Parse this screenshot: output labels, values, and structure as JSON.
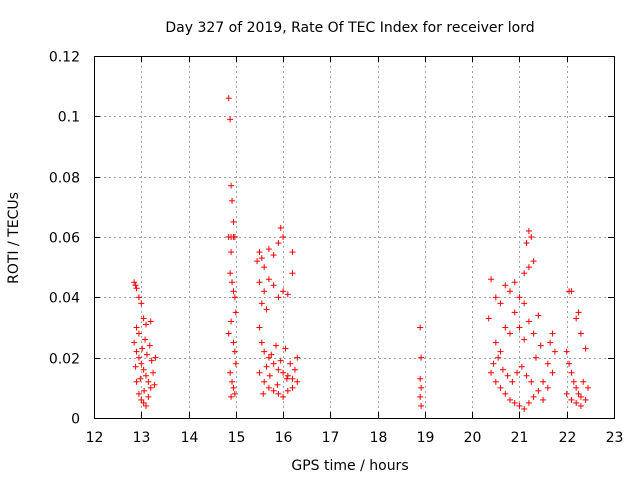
{
  "chart_data": {
    "type": "scatter",
    "title": "Day 327 of 2019, Rate Of TEC Index for receiver lord",
    "xlabel": "GPS time / hours",
    "ylabel": "ROTI / TECUs",
    "xlim": [
      12,
      23
    ],
    "ylim": [
      0,
      0.12
    ],
    "x_ticks": [
      12,
      13,
      14,
      15,
      16,
      17,
      18,
      19,
      20,
      21,
      22,
      23
    ],
    "x_tick_labels": [
      "12",
      "13",
      "14",
      "15",
      "16",
      "17",
      "18",
      "19",
      "20",
      "21",
      "22",
      "23"
    ],
    "y_ticks": [
      0,
      0.02,
      0.04,
      0.06,
      0.08,
      0.1,
      0.12
    ],
    "y_tick_labels": [
      "0",
      "0.02",
      "0.04",
      "0.06",
      "0.08",
      "0.1",
      "0.12"
    ],
    "grid": true,
    "marker": "+",
    "color": "#ff0000",
    "series": [
      {
        "name": "ROTI",
        "points": [
          [
            12.85,
            0.045
          ],
          [
            12.88,
            0.044
          ],
          [
            12.9,
            0.043
          ],
          [
            12.95,
            0.04
          ],
          [
            13.0,
            0.038
          ],
          [
            12.9,
            0.03
          ],
          [
            12.95,
            0.028
          ],
          [
            13.05,
            0.033
          ],
          [
            13.1,
            0.031
          ],
          [
            13.2,
            0.032
          ],
          [
            12.85,
            0.025
          ],
          [
            12.9,
            0.022
          ],
          [
            12.95,
            0.02
          ],
          [
            13.0,
            0.018
          ],
          [
            13.05,
            0.016
          ],
          [
            13.1,
            0.014
          ],
          [
            13.15,
            0.012
          ],
          [
            13.2,
            0.01
          ],
          [
            13.25,
            0.015
          ],
          [
            13.3,
            0.02
          ],
          [
            12.9,
            0.012
          ],
          [
            12.95,
            0.008
          ],
          [
            13.0,
            0.006
          ],
          [
            13.05,
            0.005
          ],
          [
            13.1,
            0.004
          ],
          [
            12.88,
            0.017
          ],
          [
            13.02,
            0.023
          ],
          [
            13.08,
            0.026
          ],
          [
            13.18,
            0.024
          ],
          [
            13.22,
            0.019
          ],
          [
            13.12,
            0.021
          ],
          [
            13.28,
            0.011
          ],
          [
            12.98,
            0.013
          ],
          [
            13.06,
            0.009
          ],
          [
            13.15,
            0.007
          ],
          [
            14.85,
            0.106
          ],
          [
            14.88,
            0.099
          ],
          [
            14.9,
            0.077
          ],
          [
            14.92,
            0.072
          ],
          [
            14.95,
            0.065
          ],
          [
            14.85,
            0.06
          ],
          [
            14.9,
            0.06
          ],
          [
            14.95,
            0.06
          ],
          [
            14.98,
            0.06
          ],
          [
            14.9,
            0.055
          ],
          [
            14.88,
            0.048
          ],
          [
            14.92,
            0.045
          ],
          [
            14.95,
            0.042
          ],
          [
            14.98,
            0.04
          ],
          [
            15.0,
            0.035
          ],
          [
            14.9,
            0.032
          ],
          [
            14.85,
            0.028
          ],
          [
            14.95,
            0.025
          ],
          [
            14.98,
            0.022
          ],
          [
            15.0,
            0.018
          ],
          [
            14.88,
            0.015
          ],
          [
            14.92,
            0.012
          ],
          [
            14.95,
            0.01
          ],
          [
            14.98,
            0.008
          ],
          [
            14.9,
            0.007
          ],
          [
            15.45,
            0.052
          ],
          [
            15.5,
            0.055
          ],
          [
            15.55,
            0.053
          ],
          [
            15.6,
            0.05
          ],
          [
            15.7,
            0.056
          ],
          [
            15.8,
            0.054
          ],
          [
            15.9,
            0.058
          ],
          [
            15.95,
            0.063
          ],
          [
            16.0,
            0.06
          ],
          [
            16.2,
            0.055
          ],
          [
            15.5,
            0.045
          ],
          [
            15.6,
            0.042
          ],
          [
            15.7,
            0.046
          ],
          [
            15.8,
            0.044
          ],
          [
            15.9,
            0.04
          ],
          [
            16.0,
            0.042
          ],
          [
            16.1,
            0.041
          ],
          [
            16.2,
            0.048
          ],
          [
            15.55,
            0.038
          ],
          [
            15.65,
            0.036
          ],
          [
            15.5,
            0.03
          ],
          [
            15.55,
            0.025
          ],
          [
            15.6,
            0.022
          ],
          [
            15.7,
            0.02
          ],
          [
            15.8,
            0.018
          ],
          [
            15.9,
            0.016
          ],
          [
            16.0,
            0.015
          ],
          [
            16.1,
            0.014
          ],
          [
            16.2,
            0.013
          ],
          [
            16.3,
            0.012
          ],
          [
            15.5,
            0.015
          ],
          [
            15.6,
            0.012
          ],
          [
            15.7,
            0.01
          ],
          [
            15.8,
            0.009
          ],
          [
            15.9,
            0.008
          ],
          [
            16.0,
            0.007
          ],
          [
            16.1,
            0.009
          ],
          [
            16.2,
            0.01
          ],
          [
            16.25,
            0.016
          ],
          [
            16.3,
            0.02
          ],
          [
            15.65,
            0.017
          ],
          [
            15.75,
            0.021
          ],
          [
            15.85,
            0.024
          ],
          [
            15.95,
            0.019
          ],
          [
            16.05,
            0.023
          ],
          [
            16.15,
            0.018
          ],
          [
            15.58,
            0.008
          ],
          [
            15.72,
            0.014
          ],
          [
            15.88,
            0.011
          ],
          [
            16.08,
            0.013
          ],
          [
            18.9,
            0.03
          ],
          [
            18.92,
            0.02
          ],
          [
            18.9,
            0.013
          ],
          [
            18.92,
            0.01
          ],
          [
            18.9,
            0.007
          ],
          [
            18.92,
            0.004
          ],
          [
            20.35,
            0.033
          ],
          [
            20.4,
            0.046
          ],
          [
            20.5,
            0.04
          ],
          [
            20.6,
            0.038
          ],
          [
            20.7,
            0.044
          ],
          [
            20.8,
            0.042
          ],
          [
            20.9,
            0.045
          ],
          [
            21.0,
            0.04
          ],
          [
            21.1,
            0.038
          ],
          [
            21.2,
            0.05
          ],
          [
            21.15,
            0.058
          ],
          [
            21.2,
            0.062
          ],
          [
            21.25,
            0.06
          ],
          [
            21.3,
            0.052
          ],
          [
            21.1,
            0.048
          ],
          [
            20.5,
            0.025
          ],
          [
            20.6,
            0.022
          ],
          [
            20.7,
            0.03
          ],
          [
            20.8,
            0.028
          ],
          [
            20.9,
            0.035
          ],
          [
            21.0,
            0.03
          ],
          [
            21.1,
            0.026
          ],
          [
            21.2,
            0.032
          ],
          [
            21.3,
            0.028
          ],
          [
            21.4,
            0.034
          ],
          [
            20.4,
            0.015
          ],
          [
            20.5,
            0.012
          ],
          [
            20.6,
            0.01
          ],
          [
            20.7,
            0.008
          ],
          [
            20.8,
            0.006
          ],
          [
            20.9,
            0.005
          ],
          [
            21.0,
            0.004
          ],
          [
            21.1,
            0.003
          ],
          [
            21.2,
            0.005
          ],
          [
            21.3,
            0.007
          ],
          [
            21.4,
            0.009
          ],
          [
            21.5,
            0.012
          ],
          [
            21.6,
            0.018
          ],
          [
            21.65,
            0.025
          ],
          [
            21.7,
            0.028
          ],
          [
            21.75,
            0.022
          ],
          [
            21.7,
            0.015
          ],
          [
            21.6,
            0.01
          ],
          [
            21.5,
            0.006
          ],
          [
            20.45,
            0.018
          ],
          [
            20.55,
            0.02
          ],
          [
            20.65,
            0.016
          ],
          [
            20.75,
            0.014
          ],
          [
            20.85,
            0.012
          ],
          [
            20.95,
            0.015
          ],
          [
            21.05,
            0.017
          ],
          [
            21.15,
            0.014
          ],
          [
            21.25,
            0.012
          ],
          [
            21.35,
            0.02
          ],
          [
            21.45,
            0.024
          ],
          [
            22.05,
            0.042
          ],
          [
            22.1,
            0.042
          ],
          [
            22.2,
            0.033
          ],
          [
            22.25,
            0.035
          ],
          [
            22.3,
            0.028
          ],
          [
            22.0,
            0.022
          ],
          [
            22.05,
            0.018
          ],
          [
            22.1,
            0.015
          ],
          [
            22.15,
            0.012
          ],
          [
            22.2,
            0.01
          ],
          [
            22.25,
            0.008
          ],
          [
            22.3,
            0.007
          ],
          [
            22.35,
            0.012
          ],
          [
            22.4,
            0.023
          ],
          [
            22.45,
            0.01
          ],
          [
            22.0,
            0.008
          ],
          [
            22.1,
            0.006
          ],
          [
            22.2,
            0.005
          ],
          [
            22.3,
            0.004
          ],
          [
            22.4,
            0.006
          ]
        ]
      }
    ]
  }
}
